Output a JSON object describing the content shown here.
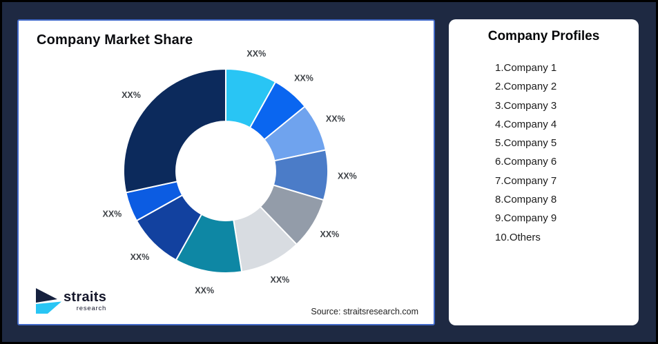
{
  "page": {
    "background_color": "#1E2942",
    "outer_border_color": "#000000"
  },
  "left_card": {
    "title": "Company Market Share",
    "source": "Source: straitsresearch.com",
    "border_color": "#4169C8"
  },
  "logo": {
    "name": "straits",
    "subtitle": "research",
    "icon_navy_color": "#16213E",
    "icon_cyan_color": "#29C5F4"
  },
  "right_card": {
    "title": "Company Profiles",
    "items": [
      "1.Company 1",
      "2.Company 2",
      "3.Company 3",
      "4.Company 4",
      "5.Company 5",
      "6.Company 6",
      "7.Company 7",
      "8.Company 8",
      "9.Company 9",
      "10.Others"
    ]
  },
  "chart_data": {
    "type": "pie",
    "subtype": "donut",
    "title": "Company Market Share",
    "units": "percent",
    "start_angle_deg": 0,
    "direction": "clockwise",
    "inner_radius_ratio": 0.486,
    "gap_color": "#FFFFFF",
    "label_color": "#3E4247",
    "legend": "none",
    "source": "Source: straitsresearch.com",
    "labels": [
      "XX%",
      "XX%",
      "XX%",
      "XX%",
      "XX%",
      "XX%",
      "XX%",
      "XX%",
      "XX%",
      "XX%"
    ],
    "values": [
      8.1,
      6.0,
      7.6,
      7.9,
      8.2,
      9.7,
      10.6,
      8.8,
      4.7,
      28.4
    ],
    "colors": [
      "#29C5F4",
      "#0A66F0",
      "#6FA3EE",
      "#4B7CC8",
      "#939CA9",
      "#D8DCE1",
      "#0E87A4",
      "#12419F",
      "#0C5CE2",
      "#0C2A5C"
    ]
  }
}
